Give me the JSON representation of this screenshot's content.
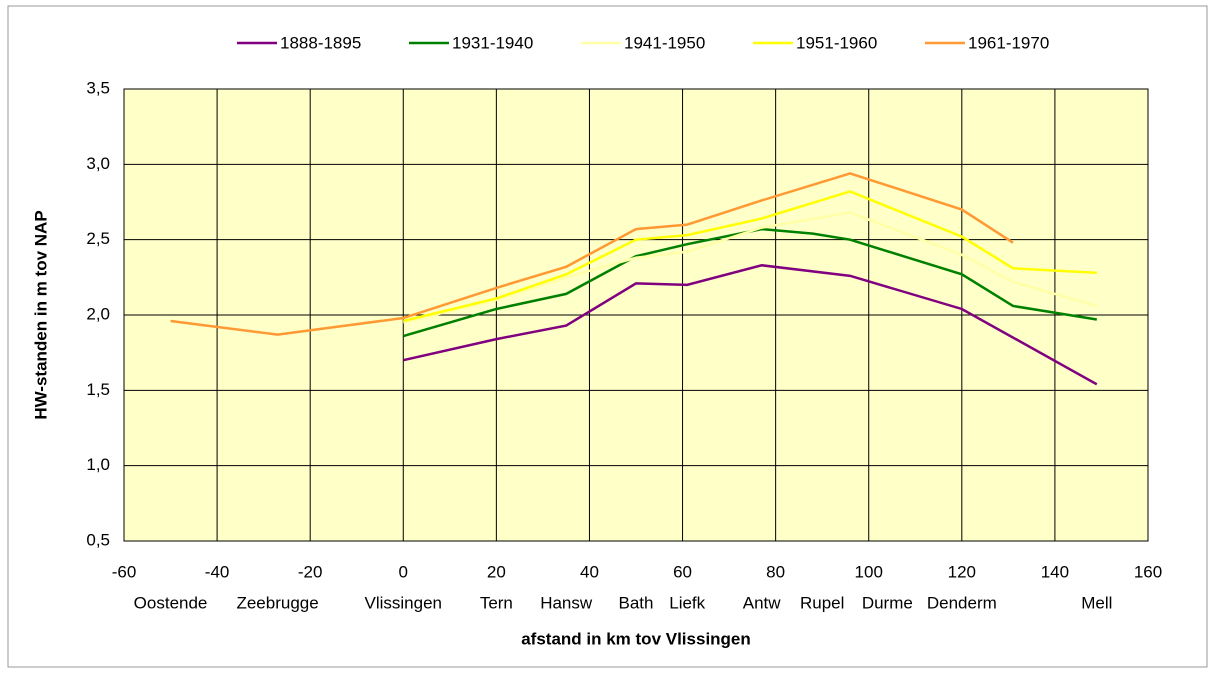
{
  "chart_data": {
    "type": "line",
    "xlabel": "afstand in km tov Vlissingen",
    "ylabel": "HW-standen in m tov NAP",
    "xlim": [
      -60,
      160
    ],
    "xticks": [
      -60,
      -40,
      -20,
      0,
      20,
      40,
      60,
      80,
      100,
      120,
      140,
      160
    ],
    "ylim": [
      0.5,
      3.5
    ],
    "yticks": [
      {
        "value": 0.5,
        "label": "0,5"
      },
      {
        "value": 1.0,
        "label": "1,0"
      },
      {
        "value": 1.5,
        "label": "1,5"
      },
      {
        "value": 2.0,
        "label": "2,0"
      },
      {
        "value": 2.5,
        "label": "2,5"
      },
      {
        "value": 3.0,
        "label": "3,0"
      },
      {
        "value": 3.5,
        "label": "3,5"
      }
    ],
    "grid": true,
    "legend": "top",
    "locations": [
      {
        "value": -50,
        "label": "Oostende"
      },
      {
        "value": -27,
        "label": "Zeebrugge"
      },
      {
        "value": 0,
        "label": "Vlissingen"
      },
      {
        "value": 20,
        "label": "Tern"
      },
      {
        "value": 35,
        "label": "Hansw"
      },
      {
        "value": 50,
        "label": "Bath"
      },
      {
        "value": 61,
        "label": "Liefk"
      },
      {
        "value": 77,
        "label": "Antw"
      },
      {
        "value": 90,
        "label": "Rupel"
      },
      {
        "value": 104,
        "label": "Durme"
      },
      {
        "value": 120,
        "label": "Denderm"
      },
      {
        "value": 149,
        "label": "Mell"
      }
    ],
    "series": [
      {
        "name": "1888-1895",
        "color": "#800080",
        "x": [
          0,
          20,
          35,
          50,
          61,
          77,
          96,
          120,
          149
        ],
        "values": [
          1.7,
          1.84,
          1.93,
          2.21,
          2.2,
          2.33,
          2.26,
          2.04,
          1.54
        ]
      },
      {
        "name": "1931-1940",
        "color": "#008000",
        "x": [
          0,
          20,
          35,
          50,
          61,
          77,
          88,
          96,
          120,
          131,
          149
        ],
        "values": [
          1.86,
          2.04,
          2.14,
          2.39,
          2.47,
          2.57,
          2.54,
          2.5,
          2.27,
          2.06,
          1.97
        ]
      },
      {
        "name": "1941-1950",
        "color": "#ffffa8",
        "x": [
          0,
          20,
          35,
          50,
          61,
          77,
          96,
          120,
          131,
          149
        ],
        "values": [
          1.95,
          2.1,
          2.25,
          2.38,
          2.42,
          2.58,
          2.68,
          2.4,
          2.22,
          2.06
        ]
      },
      {
        "name": "1951-1960",
        "color": "#ffff00",
        "x": [
          0,
          20,
          35,
          50,
          61,
          77,
          96,
          120,
          131,
          149
        ],
        "values": [
          1.96,
          2.11,
          2.27,
          2.5,
          2.53,
          2.64,
          2.82,
          2.52,
          2.31,
          2.28
        ]
      },
      {
        "name": "1961-1970",
        "color": "#ff9933",
        "x": [
          -50,
          -27,
          0,
          20,
          35,
          50,
          61,
          77,
          96,
          120,
          131
        ],
        "values": [
          1.96,
          1.87,
          1.98,
          2.18,
          2.32,
          2.57,
          2.6,
          2.76,
          2.94,
          2.7,
          2.48
        ]
      }
    ]
  }
}
